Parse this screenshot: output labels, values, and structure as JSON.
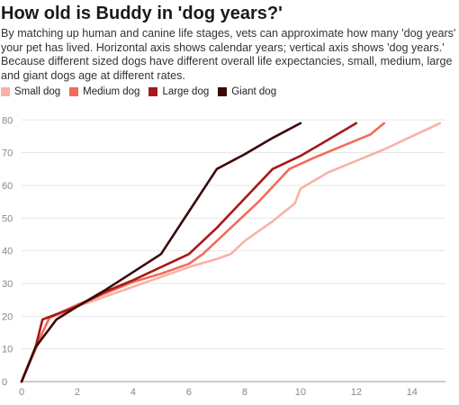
{
  "title": "How old is Buddy in 'dog years?'",
  "subtitle": "By matching up human and canine life stages, vets can approximate how many 'dog years' your pet has lived. Horizontal axis shows calendar years; vertical axis shows 'dog years.' Because different sized dogs have different overall life expectancies, small, medium, large and giant dogs age at different rates.",
  "chart_data": {
    "type": "line",
    "title": "How old is Buddy in 'dog years?'",
    "xlabel": "",
    "ylabel": "",
    "xlim": [
      0,
      15.2
    ],
    "ylim": [
      0,
      82
    ],
    "x_ticks": [
      0,
      2,
      4,
      6,
      8,
      10,
      12,
      14
    ],
    "y_ticks": [
      0,
      10,
      20,
      30,
      40,
      50,
      60,
      70,
      80
    ],
    "grid": "horizontal",
    "legend_position": "top-left",
    "series": [
      {
        "name": "Small dog",
        "color": "#f7b2a6",
        "points": [
          [
            0,
            0
          ],
          [
            0.5,
            10
          ],
          [
            0.75,
            15
          ],
          [
            1,
            19.5
          ],
          [
            1.5,
            21
          ],
          [
            2,
            23
          ],
          [
            3,
            26
          ],
          [
            4,
            29
          ],
          [
            5,
            32
          ],
          [
            6,
            35
          ],
          [
            7,
            37.5
          ],
          [
            7.5,
            39
          ],
          [
            8,
            43
          ],
          [
            9,
            49
          ],
          [
            9.8,
            54.5
          ],
          [
            10,
            59
          ],
          [
            11,
            64
          ],
          [
            12,
            67.5
          ],
          [
            13,
            71
          ],
          [
            14,
            75
          ],
          [
            15,
            79
          ]
        ]
      },
      {
        "name": "Medium dog",
        "color": "#f26b57",
        "points": [
          [
            0,
            0
          ],
          [
            0.5,
            10
          ],
          [
            0.75,
            15
          ],
          [
            1,
            19.5
          ],
          [
            2,
            23.5
          ],
          [
            3,
            27
          ],
          [
            4,
            30.5
          ],
          [
            5,
            33
          ],
          [
            6,
            36
          ],
          [
            6.5,
            39
          ],
          [
            7.5,
            47
          ],
          [
            8.5,
            55
          ],
          [
            9.6,
            65
          ],
          [
            10.5,
            68.5
          ],
          [
            11.5,
            72
          ],
          [
            12.5,
            75.5
          ],
          [
            13,
            79
          ]
        ]
      },
      {
        "name": "Large dog",
        "color": "#a81818",
        "points": [
          [
            0,
            0
          ],
          [
            0.5,
            10.5
          ],
          [
            0.75,
            19
          ],
          [
            2,
            23
          ],
          [
            3,
            27.5
          ],
          [
            4,
            31
          ],
          [
            5,
            35
          ],
          [
            6,
            39
          ],
          [
            7,
            47
          ],
          [
            8,
            56
          ],
          [
            9,
            65
          ],
          [
            10,
            69
          ],
          [
            11,
            74
          ],
          [
            12,
            79
          ]
        ]
      },
      {
        "name": "Giant dog",
        "color": "#3d0808",
        "points": [
          [
            0,
            0
          ],
          [
            0.5,
            10.5
          ],
          [
            1.25,
            19
          ],
          [
            2,
            23
          ],
          [
            3,
            28
          ],
          [
            4,
            33.5
          ],
          [
            5,
            39
          ],
          [
            6,
            52
          ],
          [
            7,
            65
          ],
          [
            8,
            69.5
          ],
          [
            9,
            74.5
          ],
          [
            10,
            79
          ]
        ]
      }
    ]
  }
}
